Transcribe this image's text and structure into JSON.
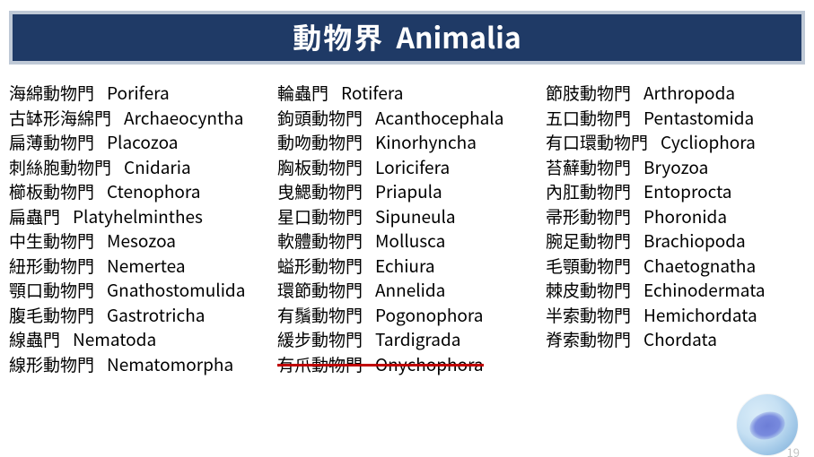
{
  "title": {
    "zh": "動物界",
    "en": "Animalia"
  },
  "colors": {
    "title_bg": "#1f3a66",
    "title_border": "#bfc9d6",
    "title_text": "#ffffff",
    "body_text": "#000000",
    "strike": "#c00000",
    "page_bg": "#ffffff"
  },
  "columns": {
    "a": [
      {
        "zh": "海綿動物門",
        "en": "Porifera"
      },
      {
        "zh": "古缽形海綿門",
        "en": "Archaeocyntha"
      },
      {
        "zh": "扁薄動物門",
        "en": "Placozoa"
      },
      {
        "zh": "刺絲胞動物門",
        "en": "Cnidaria"
      },
      {
        "zh": "櫛板動物門",
        "en": "Ctenophora"
      },
      {
        "zh": "扁蟲門",
        "en": "Platyhelminthes"
      },
      {
        "zh": "中生動物門",
        "en": "Mesozoa"
      },
      {
        "zh": "紐形動物門",
        "en": "Nemertea"
      },
      {
        "zh": "顎口動物門",
        "en": "Gnathostomulida"
      },
      {
        "zh": "腹毛動物門",
        "en": "Gastrotricha"
      },
      {
        "zh": "線蟲門",
        "en": "Nematoda"
      },
      {
        "zh": "線形動物門",
        "en": "Nematomorpha"
      }
    ],
    "b": [
      {
        "zh": "輪蟲門",
        "en": "Rotifera"
      },
      {
        "zh": "鉤頭動物門",
        "en": "Acanthocephala"
      },
      {
        "zh": "動吻動物門",
        "en": "Kinorhyncha"
      },
      {
        "zh": "胸板動物門",
        "en": "Loricifera"
      },
      {
        "zh": "曳鰓動物門",
        "en": "Priapula"
      },
      {
        "zh": "星口動物門",
        "en": "Sipuneula"
      },
      {
        "zh": "軟體動物門",
        "en": "Mollusca"
      },
      {
        "zh": "螠形動物門",
        "en": "Echiura"
      },
      {
        "zh": "環節動物門",
        "en": "Annelida"
      },
      {
        "zh": "有鬚動物門",
        "en": "Pogonophora"
      },
      {
        "zh": "緩步動物門",
        "en": "Tardigrada"
      },
      {
        "zh": "有爪動物門",
        "en": "Onychophora",
        "struck": true
      }
    ],
    "c": [
      {
        "zh": "節肢動物門",
        "en": "Arthropoda"
      },
      {
        "zh": "五口動物門",
        "en": "Pentastomida"
      },
      {
        "zh": "有口環動物門",
        "en": "Cycliophora"
      },
      {
        "zh": "苔蘚動物門",
        "en": "Bryozoa"
      },
      {
        "zh": "內肛動物門",
        "en": "Entoprocta"
      },
      {
        "zh": "帚形動物門",
        "en": "Phoronida"
      },
      {
        "zh": "腕足動物門",
        "en": "Brachiopoda"
      },
      {
        "zh": "毛顎動物門",
        "en": "Chaetognatha"
      },
      {
        "zh": "棘皮動物門",
        "en": "Echinodermata"
      },
      {
        "zh": "半索動物門",
        "en": "Hemichordata"
      },
      {
        "zh": "脊索動物門",
        "en": "Chordata"
      }
    ]
  },
  "page_number": "19"
}
